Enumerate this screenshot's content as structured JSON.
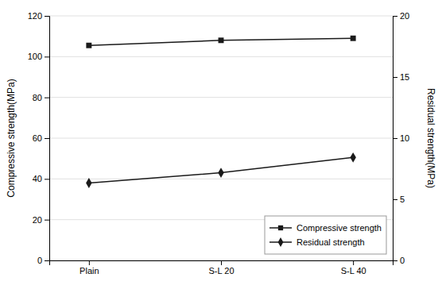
{
  "chart_data": {
    "type": "line",
    "categories": [
      "Plain",
      "S-L 20",
      "S-L 40"
    ],
    "series": [
      {
        "name": "Compressive strength",
        "color": "#1a1a1a",
        "marker": "square",
        "values": [
          105.5,
          108.0,
          109.0
        ]
      },
      {
        "name": "Residual strength",
        "color": "#1a1a1a",
        "marker": "diamond",
        "axis": "y2",
        "values": [
          6.33,
          7.17,
          8.42
        ]
      }
    ],
    "ylabel": "Compressive strength(MPa)",
    "y2label": "Residual strength(MPa)",
    "ylim": [
      0,
      120
    ],
    "yticks": [
      0,
      20,
      40,
      60,
      80,
      100,
      120
    ],
    "y2lim": [
      0,
      20
    ],
    "y2ticks": [
      0,
      5,
      10,
      15,
      20
    ],
    "grid": true,
    "legend": "lower right"
  }
}
